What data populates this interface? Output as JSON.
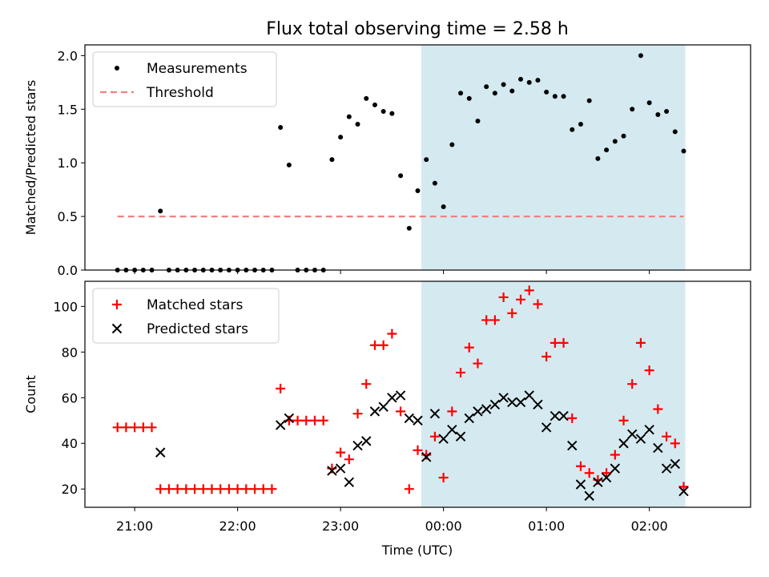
{
  "chart_data": {
    "title": "Flux total observing time = 2.58 h",
    "xlabel": "Time (UTC)",
    "x_unit": "hours UTC",
    "x_ticks": [
      "21:00",
      "22:00",
      "23:00",
      "00:00",
      "01:00",
      "02:00"
    ],
    "xlim": [
      "20:31",
      "02:59"
    ],
    "shaded_interval": {
      "start": "23:47",
      "end": "02:21",
      "color": "#d5eaf0"
    },
    "panels": [
      {
        "type": "scatter",
        "ylabel": "Matched/Predicted stars",
        "ylim": [
          0,
          2.1
        ],
        "y_ticks": [
          0.0,
          0.5,
          1.0,
          1.5,
          2.0
        ],
        "legend_position": "top-left",
        "series": [
          {
            "name": "Measurements",
            "marker": "dot",
            "color": "#000000",
            "points": [
              [
                "20:50",
                0.0
              ],
              [
                "20:55",
                0.0
              ],
              [
                "21:00",
                0.0
              ],
              [
                "21:05",
                0.0
              ],
              [
                "21:10",
                0.0
              ],
              [
                "21:15",
                0.55
              ],
              [
                "21:20",
                0.0
              ],
              [
                "21:25",
                0.0
              ],
              [
                "21:30",
                0.0
              ],
              [
                "21:35",
                0.0
              ],
              [
                "21:40",
                0.0
              ],
              [
                "21:45",
                0.0
              ],
              [
                "21:50",
                0.0
              ],
              [
                "21:55",
                0.0
              ],
              [
                "22:00",
                0.0
              ],
              [
                "22:05",
                0.0
              ],
              [
                "22:10",
                0.0
              ],
              [
                "22:15",
                0.0
              ],
              [
                "22:20",
                0.0
              ],
              [
                "22:25",
                1.33
              ],
              [
                "22:30",
                0.98
              ],
              [
                "22:35",
                0.0
              ],
              [
                "22:40",
                0.0
              ],
              [
                "22:45",
                0.0
              ],
              [
                "22:50",
                0.0
              ],
              [
                "22:55",
                1.03
              ],
              [
                "23:00",
                1.24
              ],
              [
                "23:05",
                1.43
              ],
              [
                "23:10",
                1.36
              ],
              [
                "23:15",
                1.6
              ],
              [
                "23:20",
                1.54
              ],
              [
                "23:25",
                1.48
              ],
              [
                "23:30",
                1.46
              ],
              [
                "23:35",
                0.88
              ],
              [
                "23:40",
                0.39
              ],
              [
                "23:45",
                0.74
              ],
              [
                "23:50",
                1.03
              ],
              [
                "23:55",
                0.81
              ],
              [
                "00:00",
                0.59
              ],
              [
                "00:05",
                1.17
              ],
              [
                "00:10",
                1.65
              ],
              [
                "00:15",
                1.6
              ],
              [
                "00:20",
                1.39
              ],
              [
                "00:25",
                1.71
              ],
              [
                "00:30",
                1.65
              ],
              [
                "00:35",
                1.73
              ],
              [
                "00:40",
                1.67
              ],
              [
                "00:45",
                1.78
              ],
              [
                "00:50",
                1.75
              ],
              [
                "00:55",
                1.77
              ],
              [
                "01:00",
                1.66
              ],
              [
                "01:05",
                1.62
              ],
              [
                "01:10",
                1.62
              ],
              [
                "01:15",
                1.31
              ],
              [
                "01:20",
                1.36
              ],
              [
                "01:25",
                1.58
              ],
              [
                "01:30",
                1.04
              ],
              [
                "01:35",
                1.12
              ],
              [
                "01:40",
                1.2
              ],
              [
                "01:45",
                1.25
              ],
              [
                "01:50",
                1.5
              ],
              [
                "01:55",
                2.0
              ],
              [
                "02:00",
                1.56
              ],
              [
                "02:05",
                1.45
              ],
              [
                "02:10",
                1.48
              ],
              [
                "02:15",
                1.29
              ],
              [
                "02:20",
                1.11
              ]
            ]
          },
          {
            "name": "Threshold",
            "marker": "dashed-line",
            "color": "#f08080",
            "y": 0.5,
            "x_range": [
              "20:50",
              "02:20"
            ]
          }
        ]
      },
      {
        "type": "scatter",
        "ylabel": "Count",
        "ylim": [
          12,
          111
        ],
        "y_ticks": [
          20,
          40,
          60,
          80,
          100
        ],
        "legend_position": "top-left",
        "series": [
          {
            "name": "Matched stars",
            "marker": "plus",
            "color": "#ff0000",
            "points": [
              [
                "20:50",
                47
              ],
              [
                "20:55",
                47
              ],
              [
                "21:00",
                47
              ],
              [
                "21:05",
                47
              ],
              [
                "21:10",
                47
              ],
              [
                "21:15",
                20
              ],
              [
                "21:20",
                20
              ],
              [
                "21:25",
                20
              ],
              [
                "21:30",
                20
              ],
              [
                "21:35",
                20
              ],
              [
                "21:40",
                20
              ],
              [
                "21:45",
                20
              ],
              [
                "21:50",
                20
              ],
              [
                "21:55",
                20
              ],
              [
                "22:00",
                20
              ],
              [
                "22:05",
                20
              ],
              [
                "22:10",
                20
              ],
              [
                "22:15",
                20
              ],
              [
                "22:20",
                20
              ],
              [
                "22:25",
                64
              ],
              [
                "22:30",
                50
              ],
              [
                "22:35",
                50
              ],
              [
                "22:40",
                50
              ],
              [
                "22:45",
                50
              ],
              [
                "22:50",
                50
              ],
              [
                "22:55",
                29
              ],
              [
                "23:00",
                36
              ],
              [
                "23:05",
                33
              ],
              [
                "23:10",
                53
              ],
              [
                "23:15",
                66
              ],
              [
                "23:20",
                83
              ],
              [
                "23:25",
                83
              ],
              [
                "23:30",
                88
              ],
              [
                "23:35",
                54
              ],
              [
                "23:40",
                20
              ],
              [
                "23:45",
                37
              ],
              [
                "23:50",
                35
              ],
              [
                "23:55",
                43
              ],
              [
                "00:00",
                25
              ],
              [
                "00:05",
                54
              ],
              [
                "00:10",
                71
              ],
              [
                "00:15",
                82
              ],
              [
                "00:20",
                75
              ],
              [
                "00:25",
                94
              ],
              [
                "00:30",
                94
              ],
              [
                "00:35",
                104
              ],
              [
                "00:40",
                97
              ],
              [
                "00:45",
                103
              ],
              [
                "00:50",
                107
              ],
              [
                "00:55",
                101
              ],
              [
                "01:00",
                78
              ],
              [
                "01:05",
                84
              ],
              [
                "01:10",
                84
              ],
              [
                "01:15",
                51
              ],
              [
                "01:20",
                30
              ],
              [
                "01:25",
                27
              ],
              [
                "01:30",
                24
              ],
              [
                "01:35",
                27
              ],
              [
                "01:40",
                35
              ],
              [
                "01:45",
                50
              ],
              [
                "01:50",
                66
              ],
              [
                "01:55",
                84
              ],
              [
                "02:00",
                72
              ],
              [
                "02:05",
                55
              ],
              [
                "02:10",
                43
              ],
              [
                "02:15",
                40
              ],
              [
                "02:20",
                21
              ]
            ]
          },
          {
            "name": "Predicted stars",
            "marker": "x",
            "color": "#000000",
            "points": [
              [
                "21:15",
                36
              ],
              [
                "22:25",
                48
              ],
              [
                "22:30",
                51
              ],
              [
                "22:55",
                28
              ],
              [
                "23:00",
                29
              ],
              [
                "23:05",
                23
              ],
              [
                "23:10",
                39
              ],
              [
                "23:15",
                41
              ],
              [
                "23:20",
                54
              ],
              [
                "23:25",
                56
              ],
              [
                "23:30",
                60
              ],
              [
                "23:35",
                61
              ],
              [
                "23:40",
                51
              ],
              [
                "23:45",
                50
              ],
              [
                "23:50",
                34
              ],
              [
                "23:55",
                53
              ],
              [
                "00:00",
                42
              ],
              [
                "00:05",
                46
              ],
              [
                "00:10",
                43
              ],
              [
                "00:15",
                51
              ],
              [
                "00:20",
                54
              ],
              [
                "00:25",
                55
              ],
              [
                "00:30",
                57
              ],
              [
                "00:35",
                60
              ],
              [
                "00:40",
                58
              ],
              [
                "00:45",
                58
              ],
              [
                "00:50",
                61
              ],
              [
                "00:55",
                57
              ],
              [
                "01:00",
                47
              ],
              [
                "01:05",
                52
              ],
              [
                "01:10",
                52
              ],
              [
                "01:15",
                39
              ],
              [
                "01:20",
                22
              ],
              [
                "01:25",
                17
              ],
              [
                "01:30",
                23
              ],
              [
                "01:35",
                25
              ],
              [
                "01:40",
                29
              ],
              [
                "01:45",
                40
              ],
              [
                "01:50",
                44
              ],
              [
                "01:55",
                42
              ],
              [
                "02:00",
                46
              ],
              [
                "02:05",
                38
              ],
              [
                "02:10",
                29
              ],
              [
                "02:15",
                31
              ],
              [
                "02:20",
                19
              ]
            ]
          }
        ]
      }
    ]
  }
}
